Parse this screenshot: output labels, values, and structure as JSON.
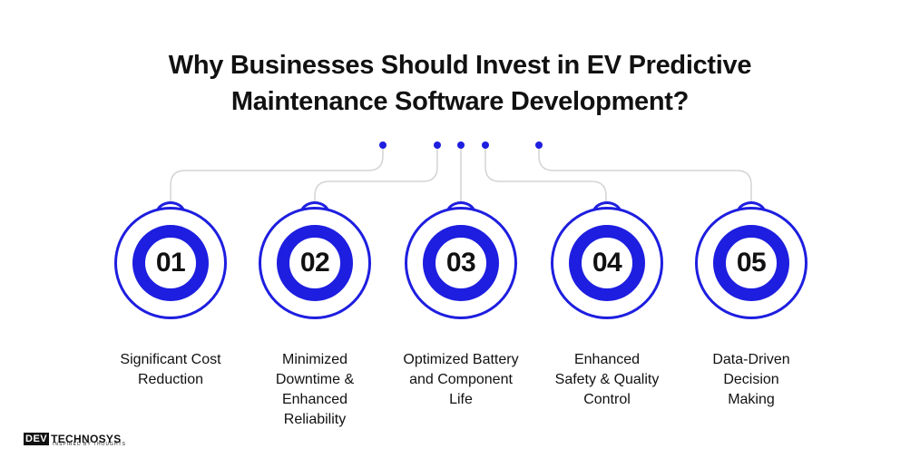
{
  "title": {
    "line1": "Why Businesses Should Invest in EV Predictive",
    "line2": "Maintenance Software Development?"
  },
  "accent_color": "#1e1ee0",
  "steps": [
    {
      "number": "01",
      "label_lines": [
        "Significant Cost",
        "Reduction"
      ]
    },
    {
      "number": "02",
      "label_lines": [
        "Minimized",
        "Downtime &",
        "Enhanced",
        "Reliability"
      ]
    },
    {
      "number": "03",
      "label_lines": [
        "Optimized Battery",
        "and Component",
        "Life"
      ]
    },
    {
      "number": "04",
      "label_lines": [
        "Enhanced",
        "Safety & Quality",
        "Control"
      ]
    },
    {
      "number": "05",
      "label_lines": [
        "Data-Driven",
        "Decision",
        "Making"
      ]
    }
  ],
  "logo": {
    "box_text": "DEV",
    "main_text": "TECHNOSYS",
    "tagline": "INSPIRED BY THOUGHTS"
  }
}
